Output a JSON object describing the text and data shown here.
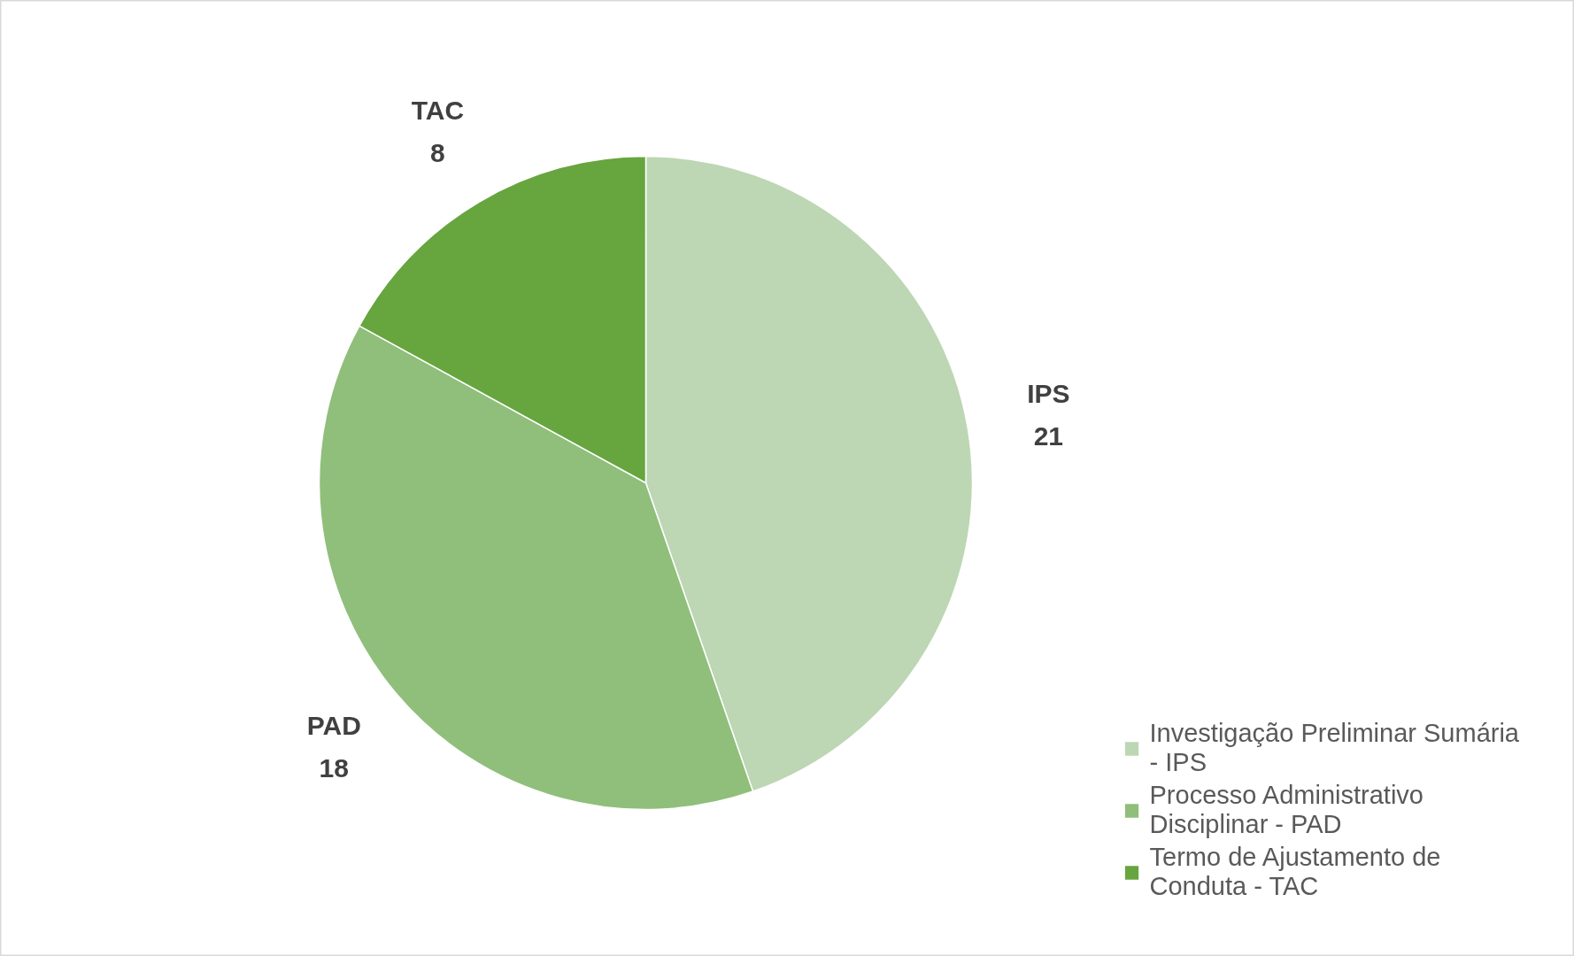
{
  "chart_data": {
    "type": "pie",
    "categories": [
      "Investigação Preliminar Sumária - IPS",
      "Processo Administrativo Disciplinar - PAD",
      "Termo de Ajustamento de Conduta - TAC"
    ],
    "values": [
      21,
      18,
      8
    ],
    "colors": [
      "#bdd6b3",
      "#8fbf7a",
      "#67a53f"
    ],
    "value_labels": [
      "IPS\n21",
      "PAD\n18",
      "TAC\n8"
    ],
    "legend": "bottom right"
  }
}
